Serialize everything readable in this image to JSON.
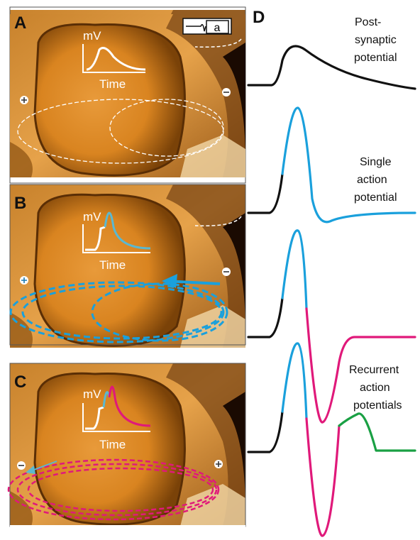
{
  "panels": [
    {
      "label": "A",
      "inset": {
        "y_label": "mV",
        "x_label": "Time"
      },
      "marker": "a"
    },
    {
      "label": "B",
      "inset": {
        "y_label": "mV",
        "x_label": "Time"
      }
    },
    {
      "label": "C",
      "inset": {
        "y_label": "mV",
        "x_label": "Time"
      }
    }
  ],
  "traces_panel": {
    "label": "D",
    "traces": [
      {
        "caption": [
          "Post-",
          "synaptic",
          "potential"
        ]
      },
      {
        "caption": [
          "Single",
          "action",
          "potential"
        ]
      },
      {
        "caption": [
          "Recurrent",
          "action",
          "potentials"
        ]
      }
    ]
  }
}
